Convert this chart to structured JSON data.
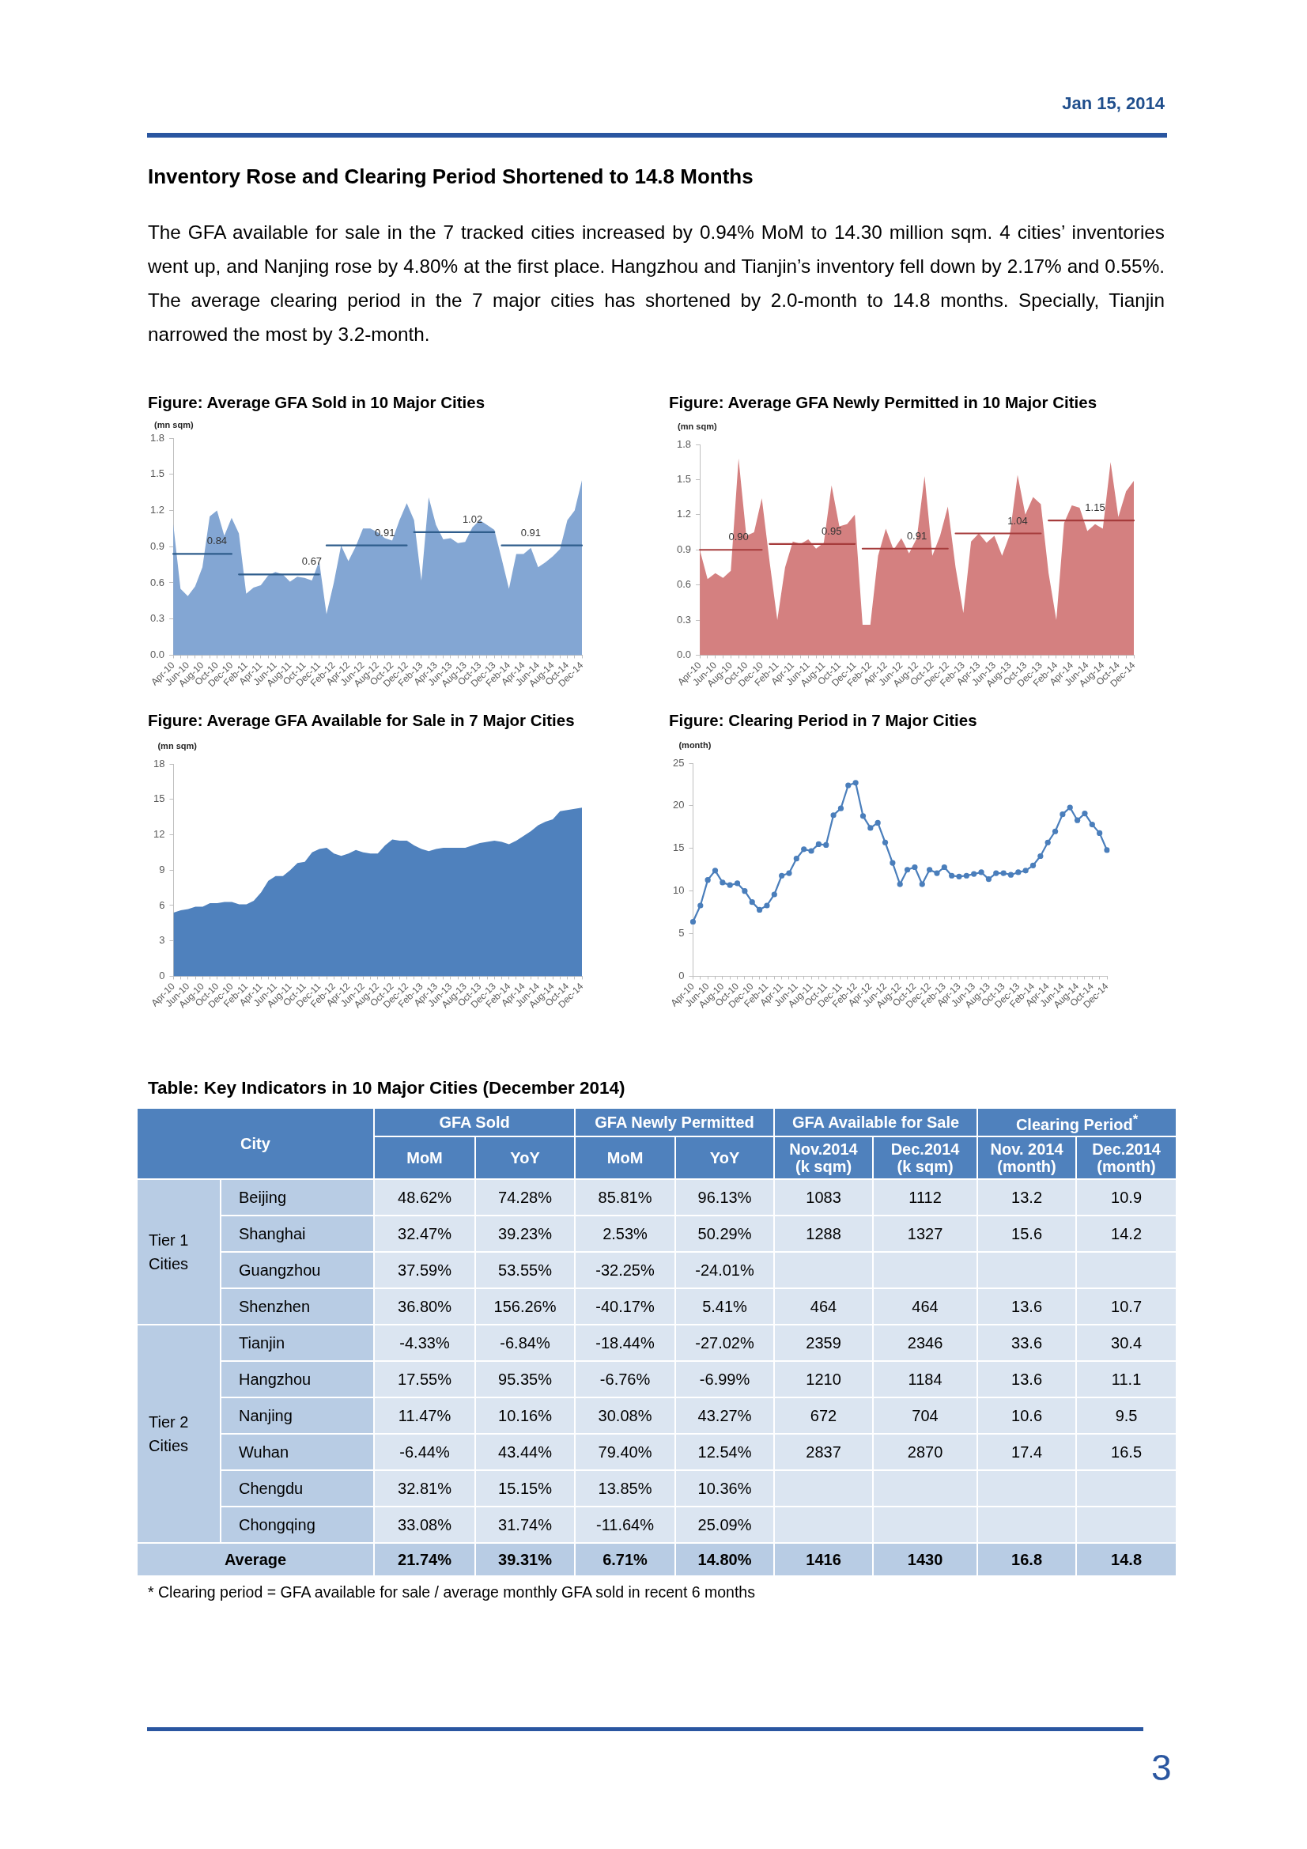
{
  "chart_data": [
    {
      "type": "other",
      "title": "Inventory Rose and Clearing Period Shortened to 14.8 Months",
      "annotations": [
        "Jan 15, 2014",
        "The GFA available for sale in the 7 tracked cities increased by 0.94% MoM to 14.30 million sqm. 4 cities’ inventories went up, and Nanjing rose by 4.80% at the first place. Hangzhou and Tianjin’s inventory fell down by 2.17% and 0.55%. The average clearing period in the 7 major cities has shortened by 2.0-month to 14.8 months. Specially, Tianjin narrowed the most by 3.2-month.",
        "3"
      ]
    },
    {
      "type": "area",
      "title": "Figure: Average GFA Sold in 10 Major Cities",
      "ylabel": "(mn sqm)",
      "categories": [
        "Apr-10",
        null,
        "Jun-10",
        null,
        "Aug-10",
        null,
        "Oct-10",
        null,
        "Dec-10",
        null,
        "Feb-11",
        null,
        "Apr-11",
        null,
        "Jun-11",
        null,
        "Aug-11",
        null,
        "Oct-11",
        null,
        "Dec-11",
        null,
        "Feb-12",
        null,
        "Apr-12",
        null,
        "Jun-12",
        null,
        "Aug-12",
        null,
        "Oct-12",
        null,
        "Dec-12",
        null,
        "Feb-13",
        null,
        "Apr-13",
        null,
        "Jun-13",
        null,
        "Aug-13",
        null,
        "Oct-13",
        null,
        "Dec-13",
        null,
        "Feb-14",
        null,
        "Apr-14",
        null,
        "Jun-14",
        null,
        "Aug-14",
        null,
        "Oct-14",
        null,
        "Dec-14"
      ],
      "series": [
        {
          "type": "area",
          "color": "#83a6d3",
          "values": [
            1.09,
            0.55,
            0.49,
            0.57,
            0.73,
            1.15,
            1.2,
            0.99,
            1.14,
            1.01,
            0.51,
            0.56,
            0.58,
            0.66,
            0.69,
            0.67,
            0.61,
            0.65,
            0.64,
            0.62,
            0.78,
            0.34,
            0.6,
            0.91,
            0.78,
            0.9,
            1.05,
            1.05,
            1.02,
            0.97,
            0.95,
            1.12,
            1.26,
            1.12,
            0.62,
            1.31,
            1.08,
            0.96,
            0.97,
            0.93,
            0.94,
            1.06,
            1.12,
            1.08,
            1.04,
            0.8,
            0.55,
            0.84,
            0.84,
            0.89,
            0.73,
            0.77,
            0.82,
            0.88,
            1.12,
            1.2,
            1.45
          ]
        },
        {
          "type": "line",
          "color": "#2f5d8c",
          "values": [
            0.84,
            0.84,
            0.84,
            0.84,
            0.84,
            0.84,
            0.84,
            0.84,
            0.84,
            null,
            null,
            null,
            null,
            null,
            null,
            null,
            null,
            null,
            null,
            null,
            null,
            null,
            null,
            null,
            null,
            null,
            null,
            null,
            null,
            null,
            null,
            null,
            null,
            null,
            null,
            null,
            null,
            null,
            null,
            null,
            null,
            null,
            null,
            null,
            null,
            null,
            null,
            null,
            null,
            null,
            null,
            null,
            null,
            null,
            null,
            null,
            null
          ],
          "value_labels": [
            null,
            null,
            null,
            null,
            null,
            null,
            "0.84",
            null,
            null,
            null,
            null,
            null,
            null,
            null,
            null,
            null,
            null,
            null,
            null,
            null,
            null,
            null,
            null,
            null,
            null,
            null,
            null,
            null,
            null,
            null,
            null,
            null,
            null,
            null,
            null,
            null,
            null,
            null,
            null,
            null,
            null,
            null,
            null,
            null,
            null,
            null,
            null,
            null,
            null,
            null,
            null,
            null,
            null,
            null,
            null,
            null,
            null
          ]
        },
        {
          "type": "line",
          "color": "#2f5d8c",
          "values": [
            null,
            null,
            null,
            null,
            null,
            null,
            null,
            null,
            null,
            0.67,
            0.67,
            0.67,
            0.67,
            0.67,
            0.67,
            0.67,
            0.67,
            0.67,
            0.67,
            0.67,
            0.67,
            null,
            null,
            null,
            null,
            null,
            null,
            null,
            null,
            null,
            null,
            null,
            null,
            null,
            null,
            null,
            null,
            null,
            null,
            null,
            null,
            null,
            null,
            null,
            null,
            null,
            null,
            null,
            null,
            null,
            null,
            null,
            null,
            null,
            null,
            null,
            null
          ],
          "value_labels": [
            null,
            null,
            null,
            null,
            null,
            null,
            null,
            null,
            null,
            null,
            null,
            null,
            null,
            null,
            null,
            null,
            null,
            null,
            null,
            "0.67",
            null,
            null,
            null,
            null,
            null,
            null,
            null,
            null,
            null,
            null,
            null,
            null,
            null,
            null,
            null,
            null,
            null,
            null,
            null,
            null,
            null,
            null,
            null,
            null,
            null,
            null,
            null,
            null,
            null,
            null,
            null,
            null,
            null,
            null,
            null,
            null,
            null
          ]
        },
        {
          "type": "line",
          "color": "#2f5d8c",
          "values": [
            null,
            null,
            null,
            null,
            null,
            null,
            null,
            null,
            null,
            null,
            null,
            null,
            null,
            null,
            null,
            null,
            null,
            null,
            null,
            null,
            null,
            0.91,
            0.91,
            0.91,
            0.91,
            0.91,
            0.91,
            0.91,
            0.91,
            0.91,
            0.91,
            0.91,
            0.91,
            null,
            null,
            null,
            null,
            null,
            null,
            null,
            null,
            null,
            null,
            null,
            null,
            null,
            null,
            null,
            null,
            null,
            null,
            null,
            null,
            null,
            null,
            null,
            null
          ],
          "value_labels": [
            null,
            null,
            null,
            null,
            null,
            null,
            null,
            null,
            null,
            null,
            null,
            null,
            null,
            null,
            null,
            null,
            null,
            null,
            null,
            null,
            null,
            null,
            null,
            null,
            null,
            null,
            null,
            null,
            null,
            "0.91",
            null,
            null,
            null,
            null,
            null,
            null,
            null,
            null,
            null,
            null,
            null,
            null,
            null,
            null,
            null,
            null,
            null,
            null,
            null,
            null,
            null,
            null,
            null,
            null,
            null,
            null,
            null
          ]
        },
        {
          "type": "line",
          "color": "#2f5d8c",
          "values": [
            null,
            null,
            null,
            null,
            null,
            null,
            null,
            null,
            null,
            null,
            null,
            null,
            null,
            null,
            null,
            null,
            null,
            null,
            null,
            null,
            null,
            null,
            null,
            null,
            null,
            null,
            null,
            null,
            null,
            null,
            null,
            null,
            null,
            1.02,
            1.02,
            1.02,
            1.02,
            1.02,
            1.02,
            1.02,
            1.02,
            1.02,
            1.02,
            1.02,
            1.02,
            null,
            null,
            null,
            null,
            null,
            null,
            null,
            null,
            null,
            null,
            null,
            null
          ],
          "value_labels": [
            null,
            null,
            null,
            null,
            null,
            null,
            null,
            null,
            null,
            null,
            null,
            null,
            null,
            null,
            null,
            null,
            null,
            null,
            null,
            null,
            null,
            null,
            null,
            null,
            null,
            null,
            null,
            null,
            null,
            null,
            null,
            null,
            null,
            null,
            null,
            null,
            null,
            null,
            null,
            null,
            null,
            "1.02",
            null,
            null,
            null,
            null,
            null,
            null,
            null,
            null,
            null,
            null,
            null,
            null,
            null,
            null,
            null
          ]
        },
        {
          "type": "line",
          "color": "#2f5d8c",
          "values": [
            null,
            null,
            null,
            null,
            null,
            null,
            null,
            null,
            null,
            null,
            null,
            null,
            null,
            null,
            null,
            null,
            null,
            null,
            null,
            null,
            null,
            null,
            null,
            null,
            null,
            null,
            null,
            null,
            null,
            null,
            null,
            null,
            null,
            null,
            null,
            null,
            null,
            null,
            null,
            null,
            null,
            null,
            null,
            null,
            null,
            0.91,
            0.91,
            0.91,
            0.91,
            0.91,
            0.91,
            0.91,
            0.91,
            0.91,
            0.91,
            0.91,
            0.91
          ],
          "value_labels": [
            null,
            null,
            null,
            null,
            null,
            null,
            null,
            null,
            null,
            null,
            null,
            null,
            null,
            null,
            null,
            null,
            null,
            null,
            null,
            null,
            null,
            null,
            null,
            null,
            null,
            null,
            null,
            null,
            null,
            null,
            null,
            null,
            null,
            null,
            null,
            null,
            null,
            null,
            null,
            null,
            null,
            null,
            null,
            null,
            null,
            null,
            null,
            null,
            null,
            "0.91",
            null,
            null,
            null,
            null,
            null,
            null,
            null
          ]
        }
      ],
      "ylim": [
        0,
        1.8
      ],
      "yticks": [
        {
          "value": 0,
          "label": "0.0"
        },
        0.3,
        0.6,
        0.9,
        1.2,
        1.5,
        1.8
      ]
    },
    {
      "type": "area",
      "title": "Figure: Average GFA Newly Permitted in 10 Major Cities",
      "ylabel": "(mn sqm)",
      "categories": [
        "Apr-10",
        null,
        "Jun-10",
        null,
        "Aug-10",
        null,
        "Oct-10",
        null,
        "Dec-10",
        null,
        "Feb-11",
        null,
        "Apr-11",
        null,
        "Jun-11",
        null,
        "Aug-11",
        null,
        "Oct-11",
        null,
        "Dec-11",
        null,
        "Feb-12",
        null,
        "Apr-12",
        null,
        "Jun-12",
        null,
        "Aug-12",
        null,
        "Oct-12",
        null,
        "Dec-12",
        null,
        "Feb-13",
        null,
        "Apr-13",
        null,
        "Jun-13",
        null,
        "Aug-13",
        null,
        "Oct-13",
        null,
        "Dec-13",
        null,
        "Feb-14",
        null,
        "Apr-14",
        null,
        "Jun-14",
        null,
        "Aug-14",
        null,
        "Oct-14",
        null,
        "Dec-14"
      ],
      "series": [
        {
          "type": "area",
          "color": "#d48080",
          "values": [
            0.9,
            0.65,
            0.7,
            0.66,
            0.72,
            1.68,
            1.02,
            1.05,
            1.34,
            0.8,
            0.3,
            0.75,
            0.97,
            0.95,
            0.99,
            0.91,
            0.96,
            1.45,
            1.1,
            1.12,
            1.2,
            0.26,
            0.26,
            0.85,
            1.08,
            0.9,
            1.0,
            0.87,
            1.0,
            1.53,
            0.85,
            1.02,
            1.27,
            0.75,
            0.36,
            0.97,
            1.04,
            0.96,
            1.02,
            0.85,
            1.03,
            1.54,
            1.2,
            1.35,
            1.29,
            0.7,
            0.3,
            1.13,
            1.28,
            1.26,
            1.06,
            1.12,
            1.08,
            1.65,
            1.18,
            1.4,
            1.49
          ]
        },
        {
          "type": "line",
          "color": "#a63c3c",
          "values": [
            0.9,
            0.9,
            0.9,
            0.9,
            0.9,
            0.9,
            0.9,
            0.9,
            0.9,
            null,
            null,
            null,
            null,
            null,
            null,
            null,
            null,
            null,
            null,
            null,
            null,
            null,
            null,
            null,
            null,
            null,
            null,
            null,
            null,
            null,
            null,
            null,
            null,
            null,
            null,
            null,
            null,
            null,
            null,
            null,
            null,
            null,
            null,
            null,
            null,
            null,
            null,
            null,
            null,
            null,
            null,
            null,
            null,
            null,
            null,
            null,
            null
          ],
          "value_labels": [
            null,
            null,
            null,
            null,
            null,
            "0.90",
            null,
            null,
            null,
            null,
            null,
            null,
            null,
            null,
            null,
            null,
            null,
            null,
            null,
            null,
            null,
            null,
            null,
            null,
            null,
            null,
            null,
            null,
            null,
            null,
            null,
            null,
            null,
            null,
            null,
            null,
            null,
            null,
            null,
            null,
            null,
            null,
            null,
            null,
            null,
            null,
            null,
            null,
            null,
            null,
            null,
            null,
            null,
            null,
            null,
            null,
            null
          ]
        },
        {
          "type": "line",
          "color": "#a63c3c",
          "values": [
            null,
            null,
            null,
            null,
            null,
            null,
            null,
            null,
            null,
            0.95,
            0.95,
            0.95,
            0.95,
            0.95,
            0.95,
            0.95,
            0.95,
            0.95,
            0.95,
            0.95,
            0.95,
            null,
            null,
            null,
            null,
            null,
            null,
            null,
            null,
            null,
            null,
            null,
            null,
            null,
            null,
            null,
            null,
            null,
            null,
            null,
            null,
            null,
            null,
            null,
            null,
            null,
            null,
            null,
            null,
            null,
            null,
            null,
            null,
            null,
            null,
            null,
            null
          ],
          "value_labels": [
            null,
            null,
            null,
            null,
            null,
            null,
            null,
            null,
            null,
            null,
            null,
            null,
            null,
            null,
            null,
            null,
            null,
            "0.95",
            null,
            null,
            null,
            null,
            null,
            null,
            null,
            null,
            null,
            null,
            null,
            null,
            null,
            null,
            null,
            null,
            null,
            null,
            null,
            null,
            null,
            null,
            null,
            null,
            null,
            null,
            null,
            null,
            null,
            null,
            null,
            null,
            null,
            null,
            null,
            null,
            null,
            null,
            null
          ]
        },
        {
          "type": "line",
          "color": "#a63c3c",
          "values": [
            null,
            null,
            null,
            null,
            null,
            null,
            null,
            null,
            null,
            null,
            null,
            null,
            null,
            null,
            null,
            null,
            null,
            null,
            null,
            null,
            null,
            0.91,
            0.91,
            0.91,
            0.91,
            0.91,
            0.91,
            0.91,
            0.91,
            0.91,
            0.91,
            0.91,
            0.91,
            null,
            null,
            null,
            null,
            null,
            null,
            null,
            null,
            null,
            null,
            null,
            null,
            null,
            null,
            null,
            null,
            null,
            null,
            null,
            null,
            null,
            null,
            null,
            null
          ],
          "value_labels": [
            null,
            null,
            null,
            null,
            null,
            null,
            null,
            null,
            null,
            null,
            null,
            null,
            null,
            null,
            null,
            null,
            null,
            null,
            null,
            null,
            null,
            null,
            null,
            null,
            null,
            null,
            null,
            null,
            "0.91",
            null,
            null,
            null,
            null,
            null,
            null,
            null,
            null,
            null,
            null,
            null,
            null,
            null,
            null,
            null,
            null,
            null,
            null,
            null,
            null,
            null,
            null,
            null,
            null,
            null,
            null,
            null,
            null
          ]
        },
        {
          "type": "line",
          "color": "#a63c3c",
          "values": [
            null,
            null,
            null,
            null,
            null,
            null,
            null,
            null,
            null,
            null,
            null,
            null,
            null,
            null,
            null,
            null,
            null,
            null,
            null,
            null,
            null,
            null,
            null,
            null,
            null,
            null,
            null,
            null,
            null,
            null,
            null,
            null,
            null,
            1.04,
            1.04,
            1.04,
            1.04,
            1.04,
            1.04,
            1.04,
            1.04,
            1.04,
            1.04,
            1.04,
            1.04,
            null,
            null,
            null,
            null,
            null,
            null,
            null,
            null,
            null,
            null,
            null,
            null
          ],
          "value_labels": [
            null,
            null,
            null,
            null,
            null,
            null,
            null,
            null,
            null,
            null,
            null,
            null,
            null,
            null,
            null,
            null,
            null,
            null,
            null,
            null,
            null,
            null,
            null,
            null,
            null,
            null,
            null,
            null,
            null,
            null,
            null,
            null,
            null,
            null,
            null,
            null,
            null,
            null,
            null,
            null,
            null,
            "1.04",
            null,
            null,
            null,
            null,
            null,
            null,
            null,
            null,
            null,
            null,
            null,
            null,
            null,
            null,
            null
          ]
        },
        {
          "type": "line",
          "color": "#a63c3c",
          "values": [
            null,
            null,
            null,
            null,
            null,
            null,
            null,
            null,
            null,
            null,
            null,
            null,
            null,
            null,
            null,
            null,
            null,
            null,
            null,
            null,
            null,
            null,
            null,
            null,
            null,
            null,
            null,
            null,
            null,
            null,
            null,
            null,
            null,
            null,
            null,
            null,
            null,
            null,
            null,
            null,
            null,
            null,
            null,
            null,
            null,
            1.15,
            1.15,
            1.15,
            1.15,
            1.15,
            1.15,
            1.15,
            1.15,
            1.15,
            1.15,
            1.15,
            1.15
          ],
          "value_labels": [
            null,
            null,
            null,
            null,
            null,
            null,
            null,
            null,
            null,
            null,
            null,
            null,
            null,
            null,
            null,
            null,
            null,
            null,
            null,
            null,
            null,
            null,
            null,
            null,
            null,
            null,
            null,
            null,
            null,
            null,
            null,
            null,
            null,
            null,
            null,
            null,
            null,
            null,
            null,
            null,
            null,
            null,
            null,
            null,
            null,
            null,
            null,
            null,
            null,
            null,
            null,
            "1.15",
            null,
            null,
            null,
            null,
            null
          ]
        }
      ],
      "ylim": [
        0,
        1.8
      ],
      "yticks": [
        {
          "value": 0,
          "label": "0.0"
        },
        0.3,
        0.6,
        0.9,
        1.2,
        1.5,
        1.8
      ]
    },
    {
      "type": "area",
      "title": "Figure: Average GFA Available for Sale in 7 Major Cities",
      "ylabel": "(mn sqm)",
      "color": "#4f81bd",
      "categories": [
        "Apr-10",
        null,
        "Jun-10",
        null,
        "Aug-10",
        null,
        "Oct-10",
        null,
        "Dec-10",
        null,
        "Feb-11",
        null,
        "Apr-11",
        null,
        "Jun-11",
        null,
        "Aug-11",
        null,
        "Oct-11",
        null,
        "Dec-11",
        null,
        "Feb-12",
        null,
        "Apr-12",
        null,
        "Jun-12",
        null,
        "Aug-12",
        null,
        "Oct-12",
        null,
        "Dec-12",
        null,
        "Feb-13",
        null,
        "Apr-13",
        null,
        "Jun-13",
        null,
        "Aug-13",
        null,
        "Oct-13",
        null,
        "Dec-13",
        null,
        "Feb-14",
        null,
        "Apr-14",
        null,
        "Jun-14",
        null,
        "Aug-14",
        null,
        "Oct-14",
        null,
        "Dec-14"
      ],
      "values": [
        5.4,
        5.6,
        5.7,
        5.9,
        5.9,
        6.2,
        6.2,
        6.3,
        6.3,
        6.1,
        6.1,
        6.4,
        7.1,
        8.1,
        8.5,
        8.5,
        9.0,
        9.6,
        9.7,
        10.5,
        10.8,
        10.9,
        10.4,
        10.2,
        10.4,
        10.7,
        10.5,
        10.4,
        10.4,
        11.1,
        11.6,
        11.5,
        11.5,
        11.1,
        10.8,
        10.6,
        10.8,
        10.9,
        10.9,
        10.9,
        10.9,
        11.1,
        11.3,
        11.4,
        11.5,
        11.4,
        11.2,
        11.5,
        11.9,
        12.3,
        12.8,
        13.1,
        13.3,
        14.0,
        14.1,
        14.2,
        14.3
      ],
      "ylim": [
        0,
        18
      ],
      "yticks": [
        0,
        3,
        6,
        9,
        12,
        15,
        18
      ]
    },
    {
      "type": "line",
      "title": "Figure: Clearing Period in 7 Major Cities",
      "ylabel": "(month)",
      "color": "#4a7ebb",
      "marker": "circle",
      "categories": [
        "Apr-10",
        null,
        "Jun-10",
        null,
        "Aug-10",
        null,
        "Oct-10",
        null,
        "Dec-10",
        null,
        "Feb-11",
        null,
        "Apr-11",
        null,
        "Jun-11",
        null,
        "Aug-11",
        null,
        "Oct-11",
        null,
        "Dec-11",
        null,
        "Feb-12",
        null,
        "Apr-12",
        null,
        "Jun-12",
        null,
        "Aug-12",
        null,
        "Oct-12",
        null,
        "Dec-12",
        null,
        "Feb-13",
        null,
        "Apr-13",
        null,
        "Jun-13",
        null,
        "Aug-13",
        null,
        "Oct-13",
        null,
        "Dec-13",
        null,
        "Feb-14",
        null,
        "Apr-14",
        null,
        "Jun-14",
        null,
        "Aug-14",
        null,
        "Oct-14",
        null,
        "Dec-14"
      ],
      "values": [
        6.4,
        8.3,
        11.3,
        12.4,
        11.0,
        10.7,
        10.9,
        10.0,
        8.7,
        7.8,
        8.3,
        9.6,
        11.8,
        12.1,
        13.8,
        14.9,
        14.7,
        15.5,
        15.4,
        18.9,
        19.7,
        22.4,
        22.7,
        18.8,
        17.4,
        18.0,
        15.7,
        13.3,
        10.8,
        12.5,
        12.8,
        10.8,
        12.5,
        12.1,
        12.8,
        11.8,
        11.7,
        11.8,
        12.0,
        12.2,
        11.4,
        12.1,
        12.1,
        11.9,
        12.2,
        12.4,
        13.0,
        14.1,
        15.7,
        17.0,
        19.0,
        19.8,
        18.3,
        19.1,
        17.8,
        16.8,
        14.8
      ],
      "ylim": [
        0,
        25
      ],
      "yticks": [
        0,
        5,
        10,
        15,
        20,
        25
      ]
    },
    {
      "type": "other",
      "title": "Table: Key Indicators in 10 Major Cities (December 2014)",
      "categories": [
        "MoM",
        "YoY",
        "MoM",
        "YoY",
        "Nov.2014\n(k sqm)",
        "Dec.2014\n(k sqm)",
        "Nov. 2014\n(month)",
        "Dec.2014\n(month)"
      ],
      "y_categories": [
        "Beijing",
        "Shanghai",
        "Guangzhou",
        "Shenzhen",
        "Tianjin",
        "Hangzhou",
        "Nanjing",
        "Wuhan",
        "Chengdu",
        "Chongqing",
        null
      ],
      "y2_categories": [
        "Tier 1 Cities",
        null,
        null,
        null,
        "Tier 2 Cities",
        null,
        null,
        null,
        null,
        null,
        "Average"
      ],
      "cell_labels": [
        [
          "48.62%",
          "74.28%",
          "85.81%",
          "96.13%",
          "1083",
          "1112",
          "13.2",
          "10.9"
        ],
        [
          "32.47%",
          "39.23%",
          "2.53%",
          "50.29%",
          "1288",
          "1327",
          "15.6",
          "14.2"
        ],
        [
          "37.59%",
          "53.55%",
          "-32.25%",
          "-24.01%",
          null,
          null,
          null,
          null
        ],
        [
          "36.80%",
          "156.26%",
          "-40.17%",
          "5.41%",
          "464",
          "464",
          "13.6",
          "10.7"
        ],
        [
          "-4.33%",
          "-6.84%",
          "-18.44%",
          "-27.02%",
          "2359",
          "2346",
          "33.6",
          "30.4"
        ],
        [
          "17.55%",
          "95.35%",
          "-6.76%",
          "-6.99%",
          "1210",
          "1184",
          "13.6",
          "11.1"
        ],
        [
          "11.47%",
          "10.16%",
          "30.08%",
          "43.27%",
          "672",
          "704",
          "10.6",
          "9.5"
        ],
        [
          "-6.44%",
          "43.44%",
          "79.40%",
          "12.54%",
          "2837",
          "2870",
          "17.4",
          "16.5"
        ],
        [
          "32.81%",
          "15.15%",
          "13.85%",
          "10.36%",
          null,
          null,
          null,
          null
        ],
        [
          "33.08%",
          "31.74%",
          "-11.64%",
          "25.09%",
          null,
          null,
          null,
          null
        ],
        [
          "21.74%",
          "39.31%",
          "6.71%",
          "14.80%",
          "1416",
          "1430",
          "16.8",
          "14.8"
        ]
      ],
      "annotations": [
        "City",
        "GFA Sold",
        "GFA Newly Permitted",
        "GFA Available for Sale",
        "Clearing Period$^{*}$",
        "* Clearing period = GFA available for sale / average monthly GFA sold in recent 6 months"
      ]
    }
  ]
}
